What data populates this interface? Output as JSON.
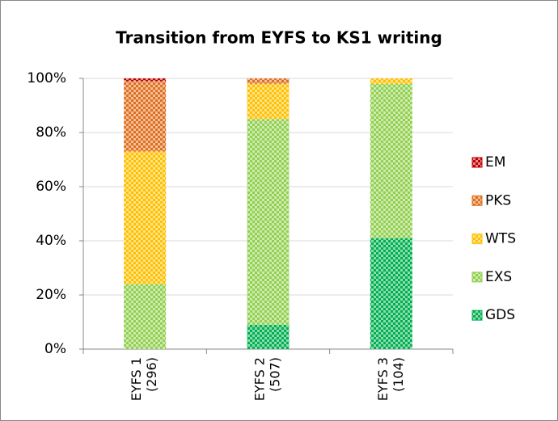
{
  "chart_data": {
    "type": "stacked_bar",
    "title": "Transition from EYFS to KS1 writing",
    "categories": [
      [
        "EYFS 1",
        "(296)"
      ],
      [
        "EYFS 2",
        "(507)"
      ],
      [
        "EYFS 3",
        "(104)"
      ]
    ],
    "series": [
      {
        "name": "GDS",
        "color": "#00b050",
        "values": [
          0,
          9,
          41
        ]
      },
      {
        "name": "EXS",
        "color": "#92d050",
        "values": [
          24,
          76,
          57
        ]
      },
      {
        "name": "WTS",
        "color": "#ffc000",
        "values": [
          49,
          13,
          2
        ]
      },
      {
        "name": "PKS",
        "color": "#e07020",
        "values": [
          26,
          2,
          0
        ]
      },
      {
        "name": "EM",
        "color": "#c00000",
        "values": [
          1,
          0,
          0
        ]
      }
    ],
    "ylim": [
      0,
      100
    ],
    "yticks": [
      {
        "value": 0,
        "label": "0%"
      },
      {
        "value": 20,
        "label": "20%"
      },
      {
        "value": 40,
        "label": "40%"
      },
      {
        "value": 60,
        "label": "60%"
      },
      {
        "value": 80,
        "label": "80%"
      },
      {
        "value": 100,
        "label": "100%"
      }
    ],
    "grid": true,
    "legend": "right"
  }
}
